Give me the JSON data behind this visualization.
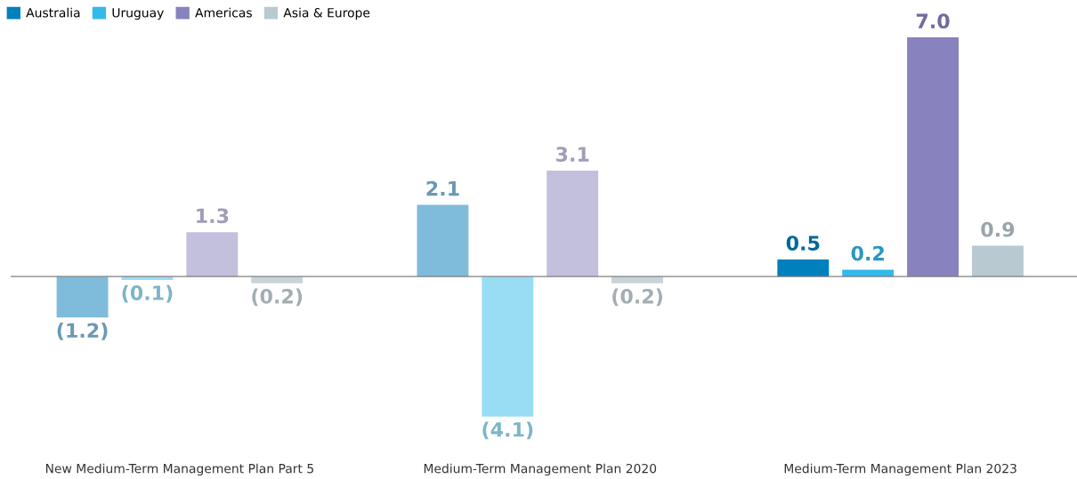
{
  "chart_data": {
    "type": "bar",
    "categories": [
      "New Medium-Term Management Plan Part 5",
      "Medium-Term Management Plan 2020",
      "Medium-Term Management Plan 2023"
    ],
    "series": [
      {
        "name": "Australia",
        "color": "#0080bc",
        "colors": [
          "#7fbbdb",
          "#7fbbdb",
          "#0080bc"
        ],
        "values": [
          -1.2,
          2.1,
          0.5
        ],
        "value_labels": [
          "(1.2)",
          "2.1",
          "0.5"
        ]
      },
      {
        "name": "Uruguay",
        "color": "#33b9ea",
        "colors": [
          "#99ddf5",
          "#99ddf5",
          "#33b9ea"
        ],
        "values": [
          -0.1,
          -4.1,
          0.2
        ],
        "value_labels": [
          "(0.1)",
          "(4.1)",
          "0.2"
        ]
      },
      {
        "name": "Americas",
        "color": "#8882bf",
        "colors": [
          "#c3c0de",
          "#c3c0de",
          "#8882bf"
        ],
        "values": [
          1.3,
          3.1,
          7.0
        ],
        "value_labels": [
          "1.3",
          "3.1",
          "7.0"
        ]
      },
      {
        "name": "Asia & Europe",
        "color": "#b9c9d2",
        "colors": [
          "#c8d3d9",
          "#c8d3d9",
          "#b9c9d2"
        ],
        "values": [
          -0.2,
          -0.2,
          0.9
        ],
        "value_labels": [
          "(0.2)",
          "(0.2)",
          "0.9"
        ]
      }
    ],
    "tick_labels": "x",
    "legend": "top left",
    "grid": false
  }
}
